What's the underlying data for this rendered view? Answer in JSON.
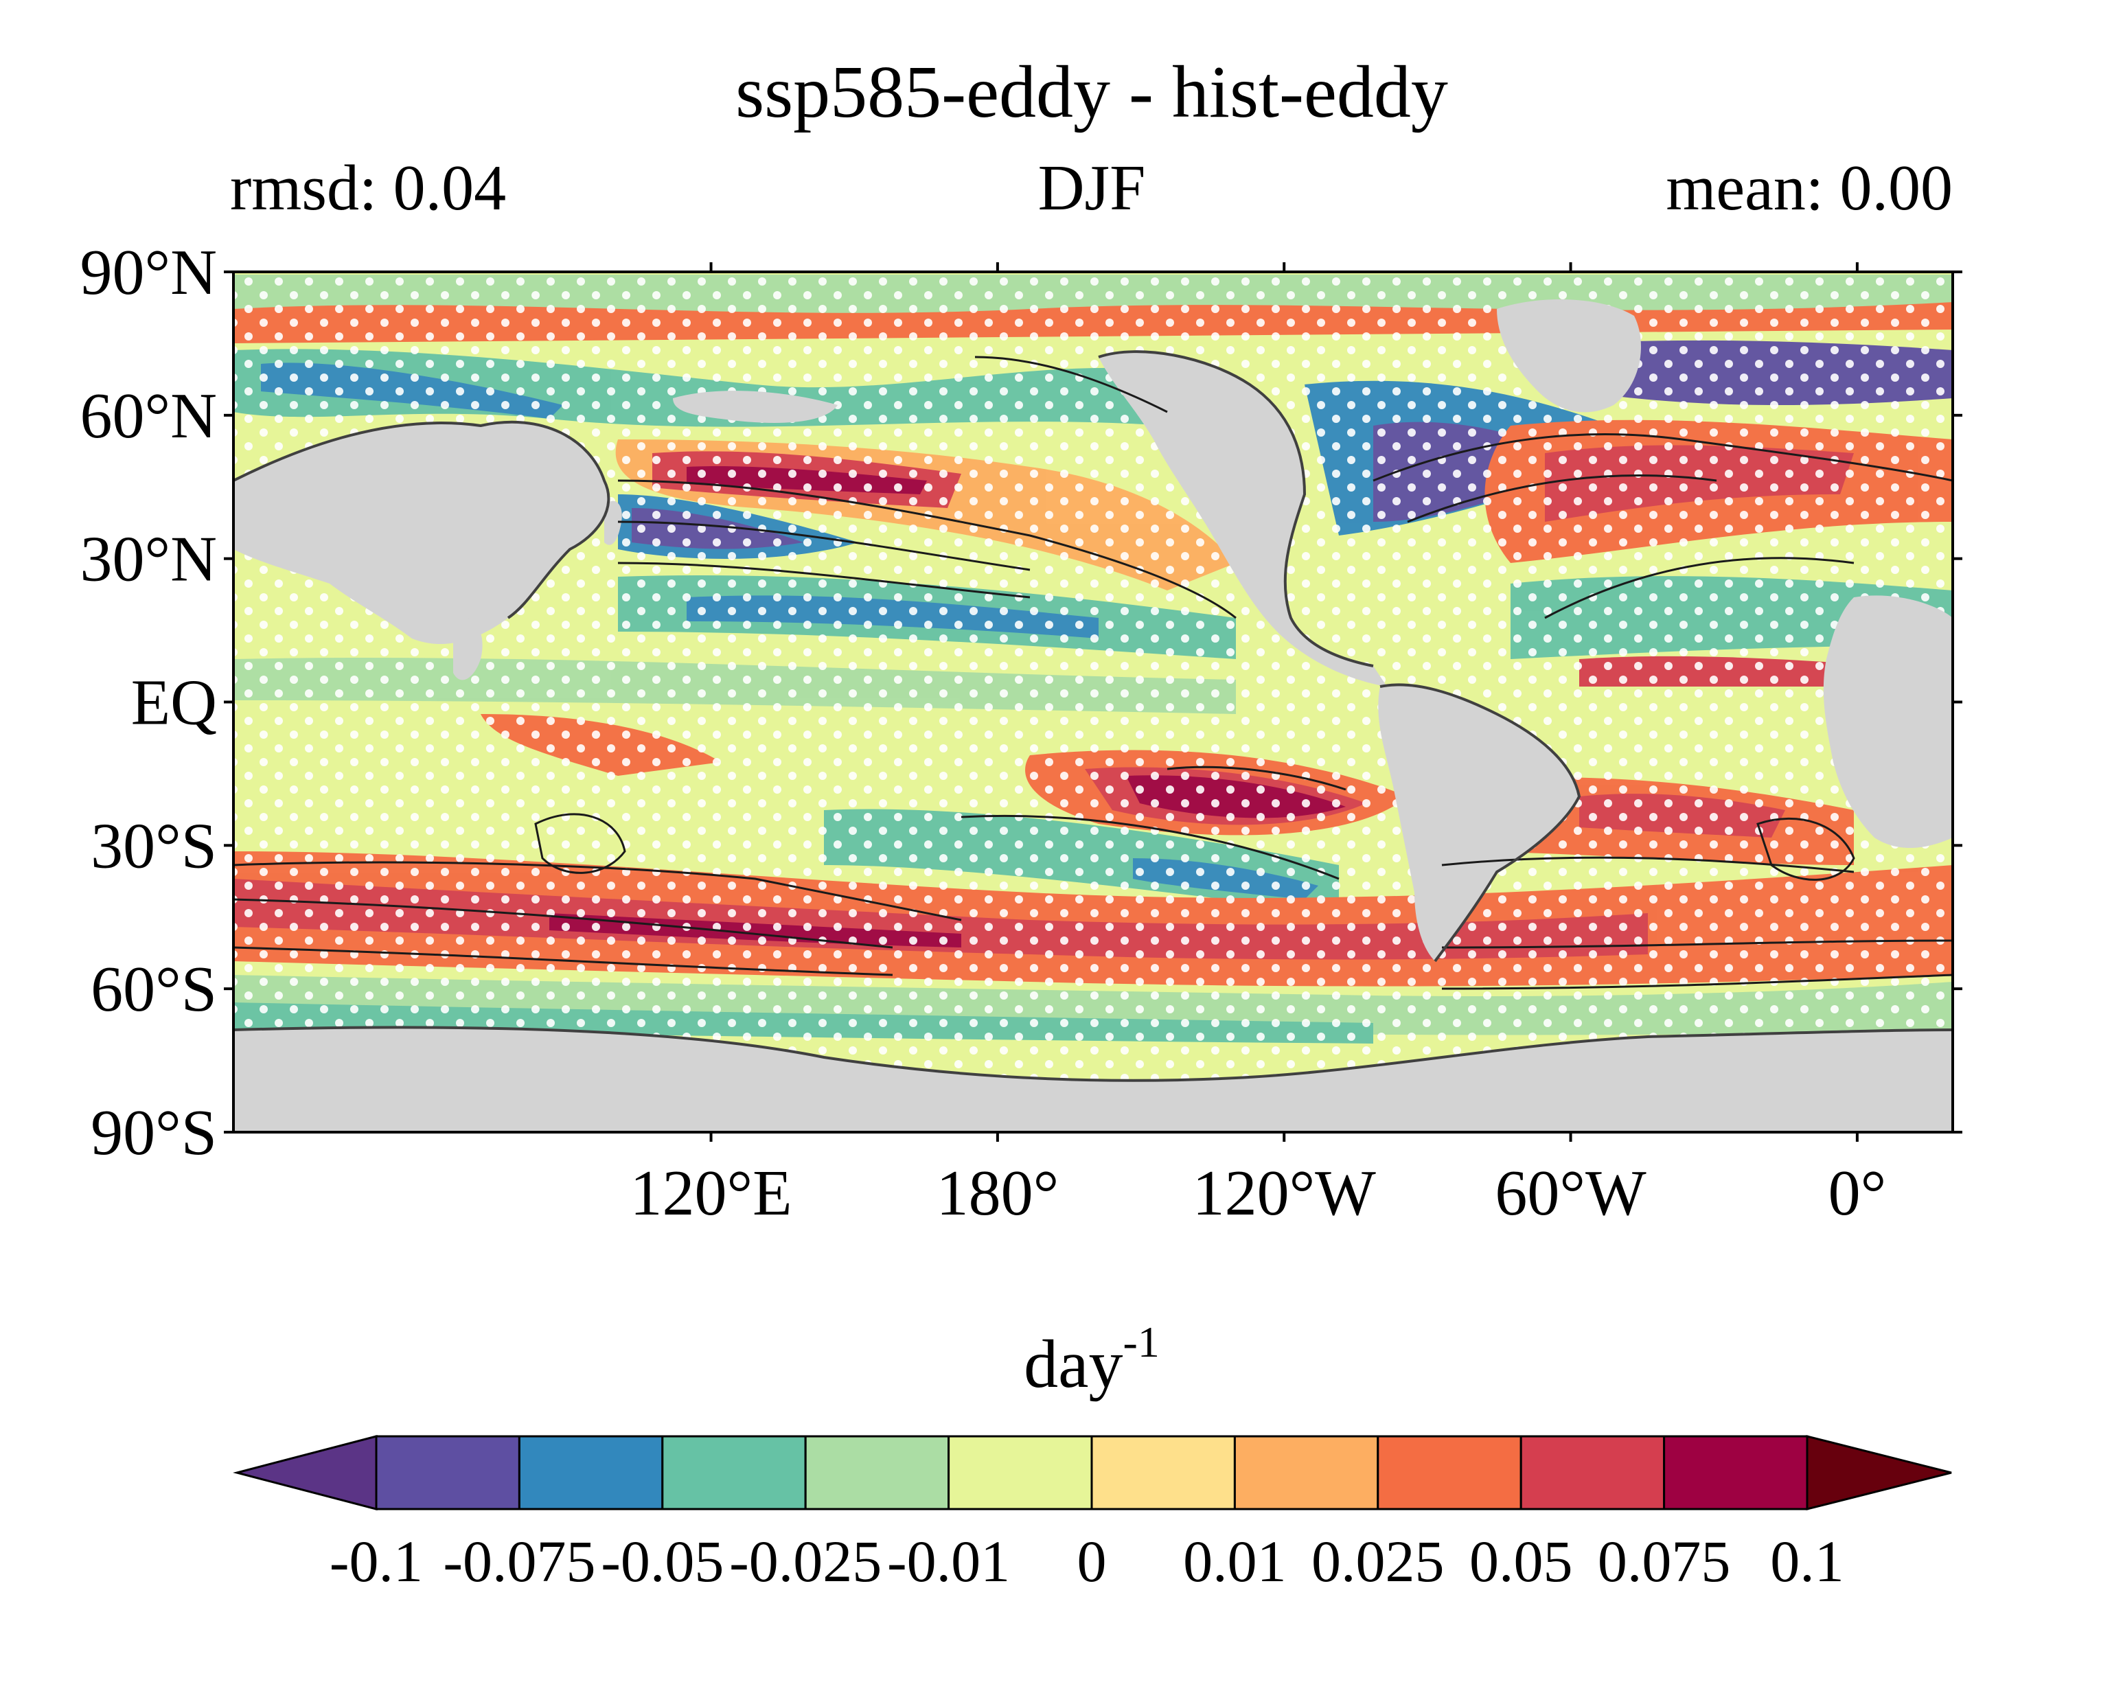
{
  "title": "ssp585-eddy - hist-eddy",
  "left_annotation": "rmsd: 0.04",
  "center_annotation": "DJF",
  "right_annotation": "mean: 0.00",
  "map": {
    "projection": "equirectangular",
    "lon_range": [
      20,
      380
    ],
    "lat_range": [
      -90,
      90
    ],
    "land_color": "#d3d3d3",
    "stipple_color": "#ffffff",
    "lat_ticks": [
      {
        "value": 90,
        "label": "90°N"
      },
      {
        "value": 60,
        "label": "60°N"
      },
      {
        "value": 30,
        "label": "30°N"
      },
      {
        "value": 0,
        "label": "EQ"
      },
      {
        "value": -30,
        "label": "30°S"
      },
      {
        "value": -60,
        "label": "60°S"
      },
      {
        "value": -90,
        "label": "90°S"
      }
    ],
    "lon_ticks": [
      {
        "value": 120,
        "label": "120°E"
      },
      {
        "value": 180,
        "label": "180°"
      },
      {
        "value": 240,
        "label": "120°W"
      },
      {
        "value": 300,
        "label": "60°W"
      },
      {
        "value": 360,
        "label": "0°"
      }
    ]
  },
  "colorbar": {
    "label_base": "day",
    "label_exponent": "-1",
    "bounds": [
      "-0.1",
      "-0.075",
      "-0.05",
      "-0.025",
      "-0.01",
      "0",
      "0.01",
      "0.025",
      "0.05",
      "0.075",
      "0.1"
    ],
    "colors": [
      "#5e4fa2",
      "#3288bd",
      "#66c2a5",
      "#abdda4",
      "#e6f598",
      "#fee08b",
      "#fdae61",
      "#f46d43",
      "#d53e4f",
      "#9e0142"
    ],
    "under_color": "#5b3486",
    "over_color": "#67000d"
  }
}
